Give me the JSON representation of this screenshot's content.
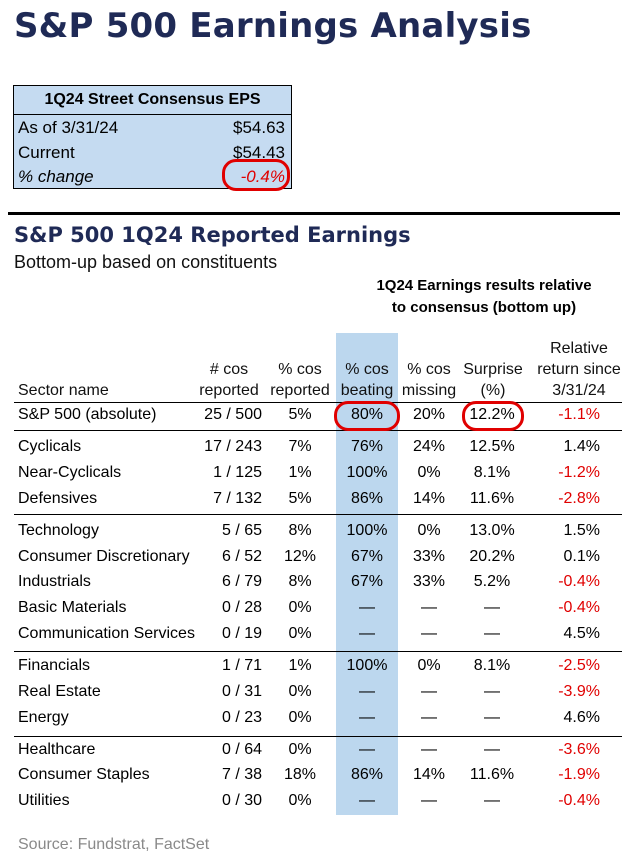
{
  "title": "S&P 500 Earnings Analysis",
  "consensus": {
    "header": "1Q24 Street Consensus EPS",
    "rows": [
      {
        "label": "As of 3/31/24",
        "value": "$54.63"
      },
      {
        "label": "Current",
        "value": "$54.43"
      },
      {
        "label": "% change",
        "value": "-0.4%"
      }
    ]
  },
  "section": {
    "title": "S&P 500 1Q24 Reported Earnings",
    "subtitle": "Bottom-up based on constituents",
    "group_title_line1": "1Q24 Earnings results relative",
    "group_title_line2": "to consensus (bottom up)"
  },
  "headers": {
    "sector": "Sector name",
    "reported_l1": "# cos",
    "reported_l2": "reported",
    "pct_l1": "% cos",
    "pct_l2": "reported",
    "beat_l1": "% cos",
    "beat_l2": "beating",
    "miss_l1": "% cos",
    "miss_l2": "missing",
    "surp_l1": "Surprise",
    "surp_l2": "(%)",
    "rel_l1": "Relative",
    "rel_l2": "return since",
    "rel_l3": "3/31/24"
  },
  "rows": [
    {
      "name": "S&P 500 (absolute)",
      "reported": "25 / 500",
      "pct": "5%",
      "beat": "80%",
      "miss": "20%",
      "surp": "12.2%",
      "rel": "-1.1%",
      "rel_neg": true
    },
    {
      "name": "Cyclicals",
      "reported": "17 / 243",
      "pct": "7%",
      "beat": "76%",
      "miss": "24%",
      "surp": "12.5%",
      "rel": "1.4%",
      "rel_neg": false
    },
    {
      "name": "Near-Cyclicals",
      "reported": "1 / 125",
      "pct": "1%",
      "beat": "100%",
      "miss": "0%",
      "surp": "8.1%",
      "rel": "-1.2%",
      "rel_neg": true
    },
    {
      "name": "Defensives",
      "reported": "7 / 132",
      "pct": "5%",
      "beat": "86%",
      "miss": "14%",
      "surp": "11.6%",
      "rel": "-2.8%",
      "rel_neg": true
    },
    {
      "name": "Technology",
      "reported": "5 / 65",
      "pct": "8%",
      "beat": "100%",
      "miss": "0%",
      "surp": "13.0%",
      "rel": "1.5%",
      "rel_neg": false
    },
    {
      "name": "Consumer Discretionary",
      "reported": "6 / 52",
      "pct": "12%",
      "beat": "67%",
      "miss": "33%",
      "surp": "20.2%",
      "rel": "0.1%",
      "rel_neg": false
    },
    {
      "name": "Industrials",
      "reported": "6 / 79",
      "pct": "8%",
      "beat": "67%",
      "miss": "33%",
      "surp": "5.2%",
      "rel": "-0.4%",
      "rel_neg": true
    },
    {
      "name": "Basic Materials",
      "reported": "0 / 28",
      "pct": "0%",
      "beat": "—",
      "miss": "—",
      "surp": "—",
      "rel": "-0.4%",
      "rel_neg": true
    },
    {
      "name": "Communication Services",
      "reported": "0 / 19",
      "pct": "0%",
      "beat": "—",
      "miss": "—",
      "surp": "—",
      "rel": "4.5%",
      "rel_neg": false
    },
    {
      "name": "Financials",
      "reported": "1 / 71",
      "pct": "1%",
      "beat": "100%",
      "miss": "0%",
      "surp": "8.1%",
      "rel": "-2.5%",
      "rel_neg": true
    },
    {
      "name": "Real Estate",
      "reported": "0 / 31",
      "pct": "0%",
      "beat": "—",
      "miss": "—",
      "surp": "—",
      "rel": "-3.9%",
      "rel_neg": true
    },
    {
      "name": "Energy",
      "reported": "0 / 23",
      "pct": "0%",
      "beat": "—",
      "miss": "—",
      "surp": "—",
      "rel": "4.6%",
      "rel_neg": false
    },
    {
      "name": "Healthcare",
      "reported": "0 / 64",
      "pct": "0%",
      "beat": "—",
      "miss": "—",
      "surp": "—",
      "rel": "-3.6%",
      "rel_neg": true
    },
    {
      "name": "Consumer Staples",
      "reported": "7 / 38",
      "pct": "18%",
      "beat": "86%",
      "miss": "14%",
      "surp": "11.6%",
      "rel": "-1.9%",
      "rel_neg": true
    },
    {
      "name": "Utilities",
      "reported": "0 / 30",
      "pct": "0%",
      "beat": "—",
      "miss": "—",
      "surp": "—",
      "rel": "-0.4%",
      "rel_neg": true
    }
  ],
  "source": "Source: Fundstrat, FactSet",
  "colors": {
    "title": "#1f2a56",
    "negative": "#e00000",
    "highlight": "#bcd7ee",
    "box": "#c5dbf1"
  }
}
